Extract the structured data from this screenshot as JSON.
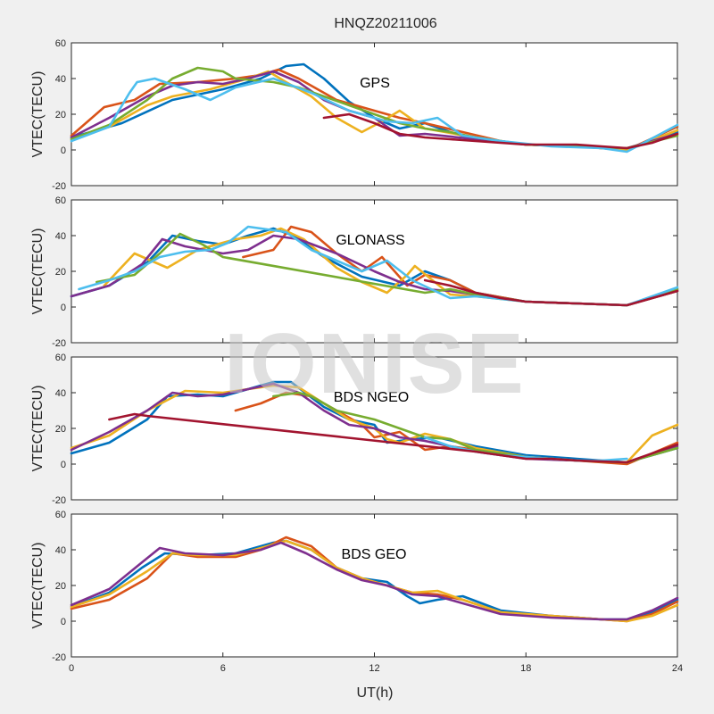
{
  "figure": {
    "title": "HNQZ20211006",
    "watermark": "IONISE",
    "xlabel": "UT(h)",
    "colors": [
      "#0072BD",
      "#D95319",
      "#EDB120",
      "#7E2F8E",
      "#77AC30",
      "#4DBEEE",
      "#A2142F"
    ]
  },
  "chart_data": [
    {
      "type": "line",
      "annotation": "GPS",
      "ylabel": "VTEC(TECU)",
      "xlim": [
        0,
        24
      ],
      "ylim": [
        -20,
        60
      ],
      "xticks": [
        "0",
        "6",
        "12",
        "18",
        "24"
      ],
      "yticks": [
        "60",
        "40",
        "20",
        "0",
        "-20"
      ],
      "grid": false,
      "series": [
        {
          "color": "#0072BD",
          "x": [
            0,
            2,
            4,
            6,
            7.5,
            8.5,
            9.2,
            10,
            11,
            12,
            13,
            14,
            15,
            16,
            18,
            20,
            22,
            24
          ],
          "y": [
            7,
            15,
            28,
            34,
            40,
            47,
            48,
            40,
            27,
            18,
            12,
            15,
            10,
            6,
            3,
            2,
            0,
            10
          ]
        },
        {
          "color": "#D95319",
          "x": [
            0,
            1.3,
            2.5,
            3.5,
            5,
            6.5,
            7.5,
            8.2,
            9,
            10.5,
            12,
            13,
            14,
            15.5,
            17,
            18,
            20,
            22,
            24
          ],
          "y": [
            8,
            24,
            28,
            37,
            38,
            40,
            42,
            45,
            40,
            28,
            22,
            18,
            15,
            10,
            5,
            3,
            2,
            0,
            13
          ]
        },
        {
          "color": "#EDB120",
          "x": [
            0,
            1.5,
            3,
            4,
            5.5,
            7,
            7.8,
            8.5,
            9.5,
            10.5,
            11.5,
            12.3,
            13,
            14,
            16,
            18,
            20,
            22,
            24
          ],
          "y": [
            6,
            13,
            25,
            30,
            34,
            40,
            44,
            38,
            30,
            18,
            10,
            16,
            22,
            12,
            7,
            3,
            2,
            0,
            11
          ]
        },
        {
          "color": "#7E2F8E",
          "x": [
            0,
            1.5,
            3,
            4,
            5,
            6,
            7,
            8,
            9,
            10,
            11,
            12,
            13,
            14,
            16,
            18,
            20,
            22,
            24
          ],
          "y": [
            7,
            18,
            30,
            36,
            38,
            37,
            40,
            44,
            38,
            28,
            22,
            18,
            8,
            9,
            6,
            3,
            2,
            1,
            9
          ]
        },
        {
          "color": "#77AC30",
          "x": [
            0,
            1.5,
            3,
            4,
            5,
            6,
            6.5,
            8,
            9,
            10,
            11,
            12,
            13,
            14,
            15,
            16,
            18,
            20,
            22,
            24
          ],
          "y": [
            6,
            14,
            28,
            40,
            46,
            44,
            40,
            38,
            35,
            30,
            25,
            20,
            15,
            12,
            10,
            7,
            3,
            2,
            1,
            8
          ]
        },
        {
          "color": "#4DBEEE",
          "x": [
            0,
            1.5,
            2.3,
            2.6,
            3.3,
            4.5,
            5.5,
            6.5,
            8,
            9.5,
            11,
            12.5,
            13.5,
            14.5,
            15.5,
            17,
            19,
            21,
            22,
            24
          ],
          "y": [
            5,
            13,
            32,
            38,
            40,
            34,
            28,
            35,
            40,
            32,
            22,
            16,
            15,
            18,
            8,
            5,
            2,
            1,
            -1,
            14
          ]
        },
        {
          "color": "#A2142F",
          "x": [
            10,
            11,
            12,
            13,
            14,
            15,
            16,
            17,
            18,
            19,
            20,
            21,
            22,
            23,
            24
          ],
          "y": [
            18,
            20,
            15,
            9,
            7,
            6,
            5,
            4,
            3,
            3,
            3,
            2,
            1,
            4,
            9
          ]
        }
      ]
    },
    {
      "type": "line",
      "annotation": "GLONASS",
      "ylabel": "VTEC(TECU)",
      "xlim": [
        0,
        24
      ],
      "ylim": [
        -20,
        60
      ],
      "xticks": [
        "0",
        "6",
        "12",
        "18",
        "24"
      ],
      "yticks": [
        "60",
        "40",
        "20",
        "0",
        "-20"
      ],
      "grid": false,
      "series": [
        {
          "color": "#0072BD",
          "x": [
            0,
            1.5,
            3,
            4,
            5,
            6,
            7,
            8,
            8.8,
            10,
            11.5,
            13,
            14,
            15,
            16,
            18,
            20,
            22,
            24
          ],
          "y": [
            6,
            12,
            25,
            40,
            37,
            35,
            40,
            44,
            40,
            28,
            17,
            12,
            20,
            15,
            8,
            3,
            2,
            1,
            10
          ]
        },
        {
          "color": "#D95319",
          "x": [
            6.8,
            8,
            8.7,
            9.5,
            10.5,
            11.5,
            12.3,
            13.3,
            14,
            15,
            16,
            18,
            20,
            22,
            24
          ],
          "y": [
            28,
            32,
            45,
            42,
            30,
            20,
            28,
            12,
            18,
            15,
            8,
            3,
            2,
            1,
            9
          ]
        },
        {
          "color": "#EDB120",
          "x": [
            1.3,
            2.5,
            3.8,
            5,
            6.5,
            7.5,
            8.3,
            9.2,
            10.5,
            11.5,
            12.5,
            13.3,
            13.6,
            15,
            16,
            18,
            20,
            22,
            24
          ],
          "y": [
            12,
            30,
            22,
            32,
            38,
            40,
            44,
            38,
            22,
            14,
            8,
            18,
            23,
            7,
            6,
            3,
            2,
            1,
            9
          ]
        },
        {
          "color": "#7E2F8E",
          "x": [
            0,
            1.5,
            2.8,
            3.6,
            4.5,
            6,
            7,
            8,
            9,
            10.5,
            12,
            13,
            14,
            15,
            16,
            18,
            20,
            22,
            24
          ],
          "y": [
            6,
            12,
            24,
            38,
            34,
            30,
            32,
            40,
            38,
            30,
            20,
            14,
            10,
            9,
            7,
            3,
            2,
            1,
            9
          ]
        },
        {
          "color": "#77AC30",
          "x": [
            1,
            2.5,
            3.5,
            4.3,
            5.2,
            6,
            14,
            15,
            16,
            17,
            18,
            20,
            22,
            24
          ],
          "y": [
            14,
            18,
            30,
            41,
            35,
            28,
            8,
            10,
            7,
            5,
            3,
            2,
            1,
            10
          ]
        },
        {
          "color": "#4DBEEE",
          "x": [
            0.3,
            1.5,
            2.5,
            3.5,
            4.5,
            5.5,
            6.2,
            7,
            8.5,
            9.5,
            10.5,
            11.5,
            12.5,
            13.5,
            15,
            16,
            18,
            20,
            22,
            24
          ],
          "y": [
            10,
            15,
            20,
            28,
            31,
            32,
            36,
            45,
            42,
            32,
            26,
            20,
            26,
            15,
            5,
            6,
            3,
            2,
            1,
            11
          ]
        },
        {
          "color": "#A2142F",
          "x": [
            14,
            15,
            16,
            17,
            18,
            20,
            22,
            24
          ],
          "y": [
            15,
            12,
            8,
            5,
            3,
            2,
            1,
            9
          ]
        }
      ]
    },
    {
      "type": "line",
      "annotation": "BDS NGEO",
      "ylabel": "VTEC(TECU)",
      "xlim": [
        0,
        24
      ],
      "ylim": [
        -20,
        60
      ],
      "xticks": [
        "0",
        "6",
        "12",
        "18",
        "24"
      ],
      "yticks": [
        "60",
        "40",
        "20",
        "0",
        "-20"
      ],
      "grid": false,
      "series": [
        {
          "color": "#0072BD",
          "x": [
            0,
            1.5,
            3,
            3.8,
            5,
            6,
            7,
            8,
            8.7,
            10,
            11,
            12,
            12.5,
            13.5,
            14.5,
            16,
            18,
            20,
            21,
            22,
            24
          ],
          "y": [
            6,
            12,
            25,
            38,
            39,
            38,
            42,
            46,
            46,
            32,
            25,
            22,
            12,
            14,
            15,
            10,
            5,
            3,
            2,
            1,
            9
          ]
        },
        {
          "color": "#D95319",
          "x": [
            6.5,
            7.5,
            8.5,
            9.5,
            10.5,
            11.5,
            12,
            13,
            14,
            15,
            16,
            18,
            20,
            22,
            24
          ],
          "y": [
            30,
            34,
            40,
            38,
            30,
            22,
            15,
            18,
            8,
            10,
            8,
            4,
            2,
            0,
            12
          ]
        },
        {
          "color": "#EDB120",
          "x": [
            0,
            1.5,
            3,
            4.5,
            6,
            7,
            8,
            9,
            10,
            11,
            12,
            12.5,
            13,
            14,
            15,
            16,
            18,
            20,
            22,
            23,
            24
          ],
          "y": [
            9,
            16,
            30,
            41,
            40,
            42,
            44,
            43,
            34,
            25,
            20,
            14,
            12,
            17,
            14,
            9,
            4,
            2,
            1,
            16,
            22
          ]
        },
        {
          "color": "#7E2F8E",
          "x": [
            0,
            1.5,
            3,
            4,
            5,
            6,
            7,
            8,
            9,
            10,
            11,
            12,
            13,
            14,
            16,
            18,
            20,
            22,
            24
          ],
          "y": [
            8,
            18,
            30,
            40,
            38,
            39,
            42,
            45,
            40,
            30,
            22,
            20,
            15,
            13,
            7,
            3,
            2,
            1,
            10
          ]
        },
        {
          "color": "#77AC30",
          "x": [
            8,
            9,
            9.5,
            10.5,
            12,
            13,
            14,
            15,
            16,
            18,
            20,
            22,
            24
          ],
          "y": [
            38,
            40,
            38,
            30,
            25,
            20,
            15,
            14,
            8,
            4,
            2,
            1,
            9
          ]
        },
        {
          "color": "#4DBEEE",
          "x": [
            14,
            15,
            16,
            17,
            18,
            19,
            20,
            21,
            22
          ],
          "y": [
            15,
            10,
            7,
            5,
            4,
            3,
            2,
            2,
            3
          ]
        },
        {
          "color": "#A2142F",
          "x": [
            1.5,
            2.5,
            3,
            16,
            17,
            18,
            19,
            20,
            22,
            24
          ],
          "y": [
            25,
            28,
            27,
            7,
            5,
            3,
            3,
            2,
            1,
            11
          ]
        }
      ]
    },
    {
      "type": "line",
      "annotation": "BDS GEO",
      "ylabel": "VTEC(TECU)",
      "xlim": [
        0,
        24
      ],
      "ylim": [
        -20,
        60
      ],
      "xticks": [
        "0",
        "6",
        "12",
        "18",
        "24"
      ],
      "yticks": [
        "60",
        "40",
        "20",
        "0",
        "-20"
      ],
      "grid": false,
      "series": [
        {
          "color": "#0072BD",
          "x": [
            0,
            1.5,
            2.8,
            3.7,
            5,
            6.5,
            8,
            8.5,
            9.5,
            10.5,
            11.5,
            12.5,
            13.3,
            13.8,
            14.5,
            15.5,
            17,
            19,
            21,
            22,
            23,
            24
          ],
          "y": [
            8,
            16,
            30,
            38,
            37,
            38,
            44,
            45,
            40,
            30,
            24,
            22,
            14,
            10,
            12,
            14,
            6,
            3,
            1,
            1,
            5,
            12
          ]
        },
        {
          "color": "#D95319",
          "x": [
            0,
            1.5,
            3,
            4,
            5,
            6.5,
            7.5,
            8.5,
            9.5,
            10.5,
            11.5,
            12.5,
            13.5,
            14.5,
            15.5,
            17,
            19,
            21,
            22,
            23,
            24
          ],
          "y": [
            7,
            12,
            24,
            38,
            36,
            36,
            40,
            47,
            42,
            30,
            24,
            20,
            16,
            15,
            12,
            5,
            3,
            1,
            0,
            4,
            11
          ]
        },
        {
          "color": "#EDB120",
          "x": [
            0,
            1.5,
            3,
            4,
            5,
            6.5,
            7.5,
            8.5,
            9.5,
            10.5,
            11.5,
            12.5,
            13.5,
            14.5,
            15.5,
            17,
            19,
            21,
            22,
            23,
            24
          ],
          "y": [
            8,
            15,
            28,
            38,
            37,
            37,
            41,
            45,
            40,
            30,
            24,
            20,
            16,
            17,
            12,
            5,
            3,
            1,
            0,
            3,
            9
          ]
        },
        {
          "color": "#7E2F8E",
          "x": [
            0,
            1.5,
            2.8,
            3.5,
            4.5,
            6,
            7.5,
            8.3,
            9.3,
            10.5,
            11.5,
            12.5,
            13.5,
            14.5,
            15.5,
            17,
            19,
            21,
            22,
            23,
            24
          ],
          "y": [
            9,
            18,
            33,
            41,
            38,
            37,
            40,
            44,
            38,
            29,
            23,
            20,
            15,
            14,
            10,
            4,
            2,
            1,
            1,
            6,
            13
          ]
        }
      ]
    }
  ]
}
